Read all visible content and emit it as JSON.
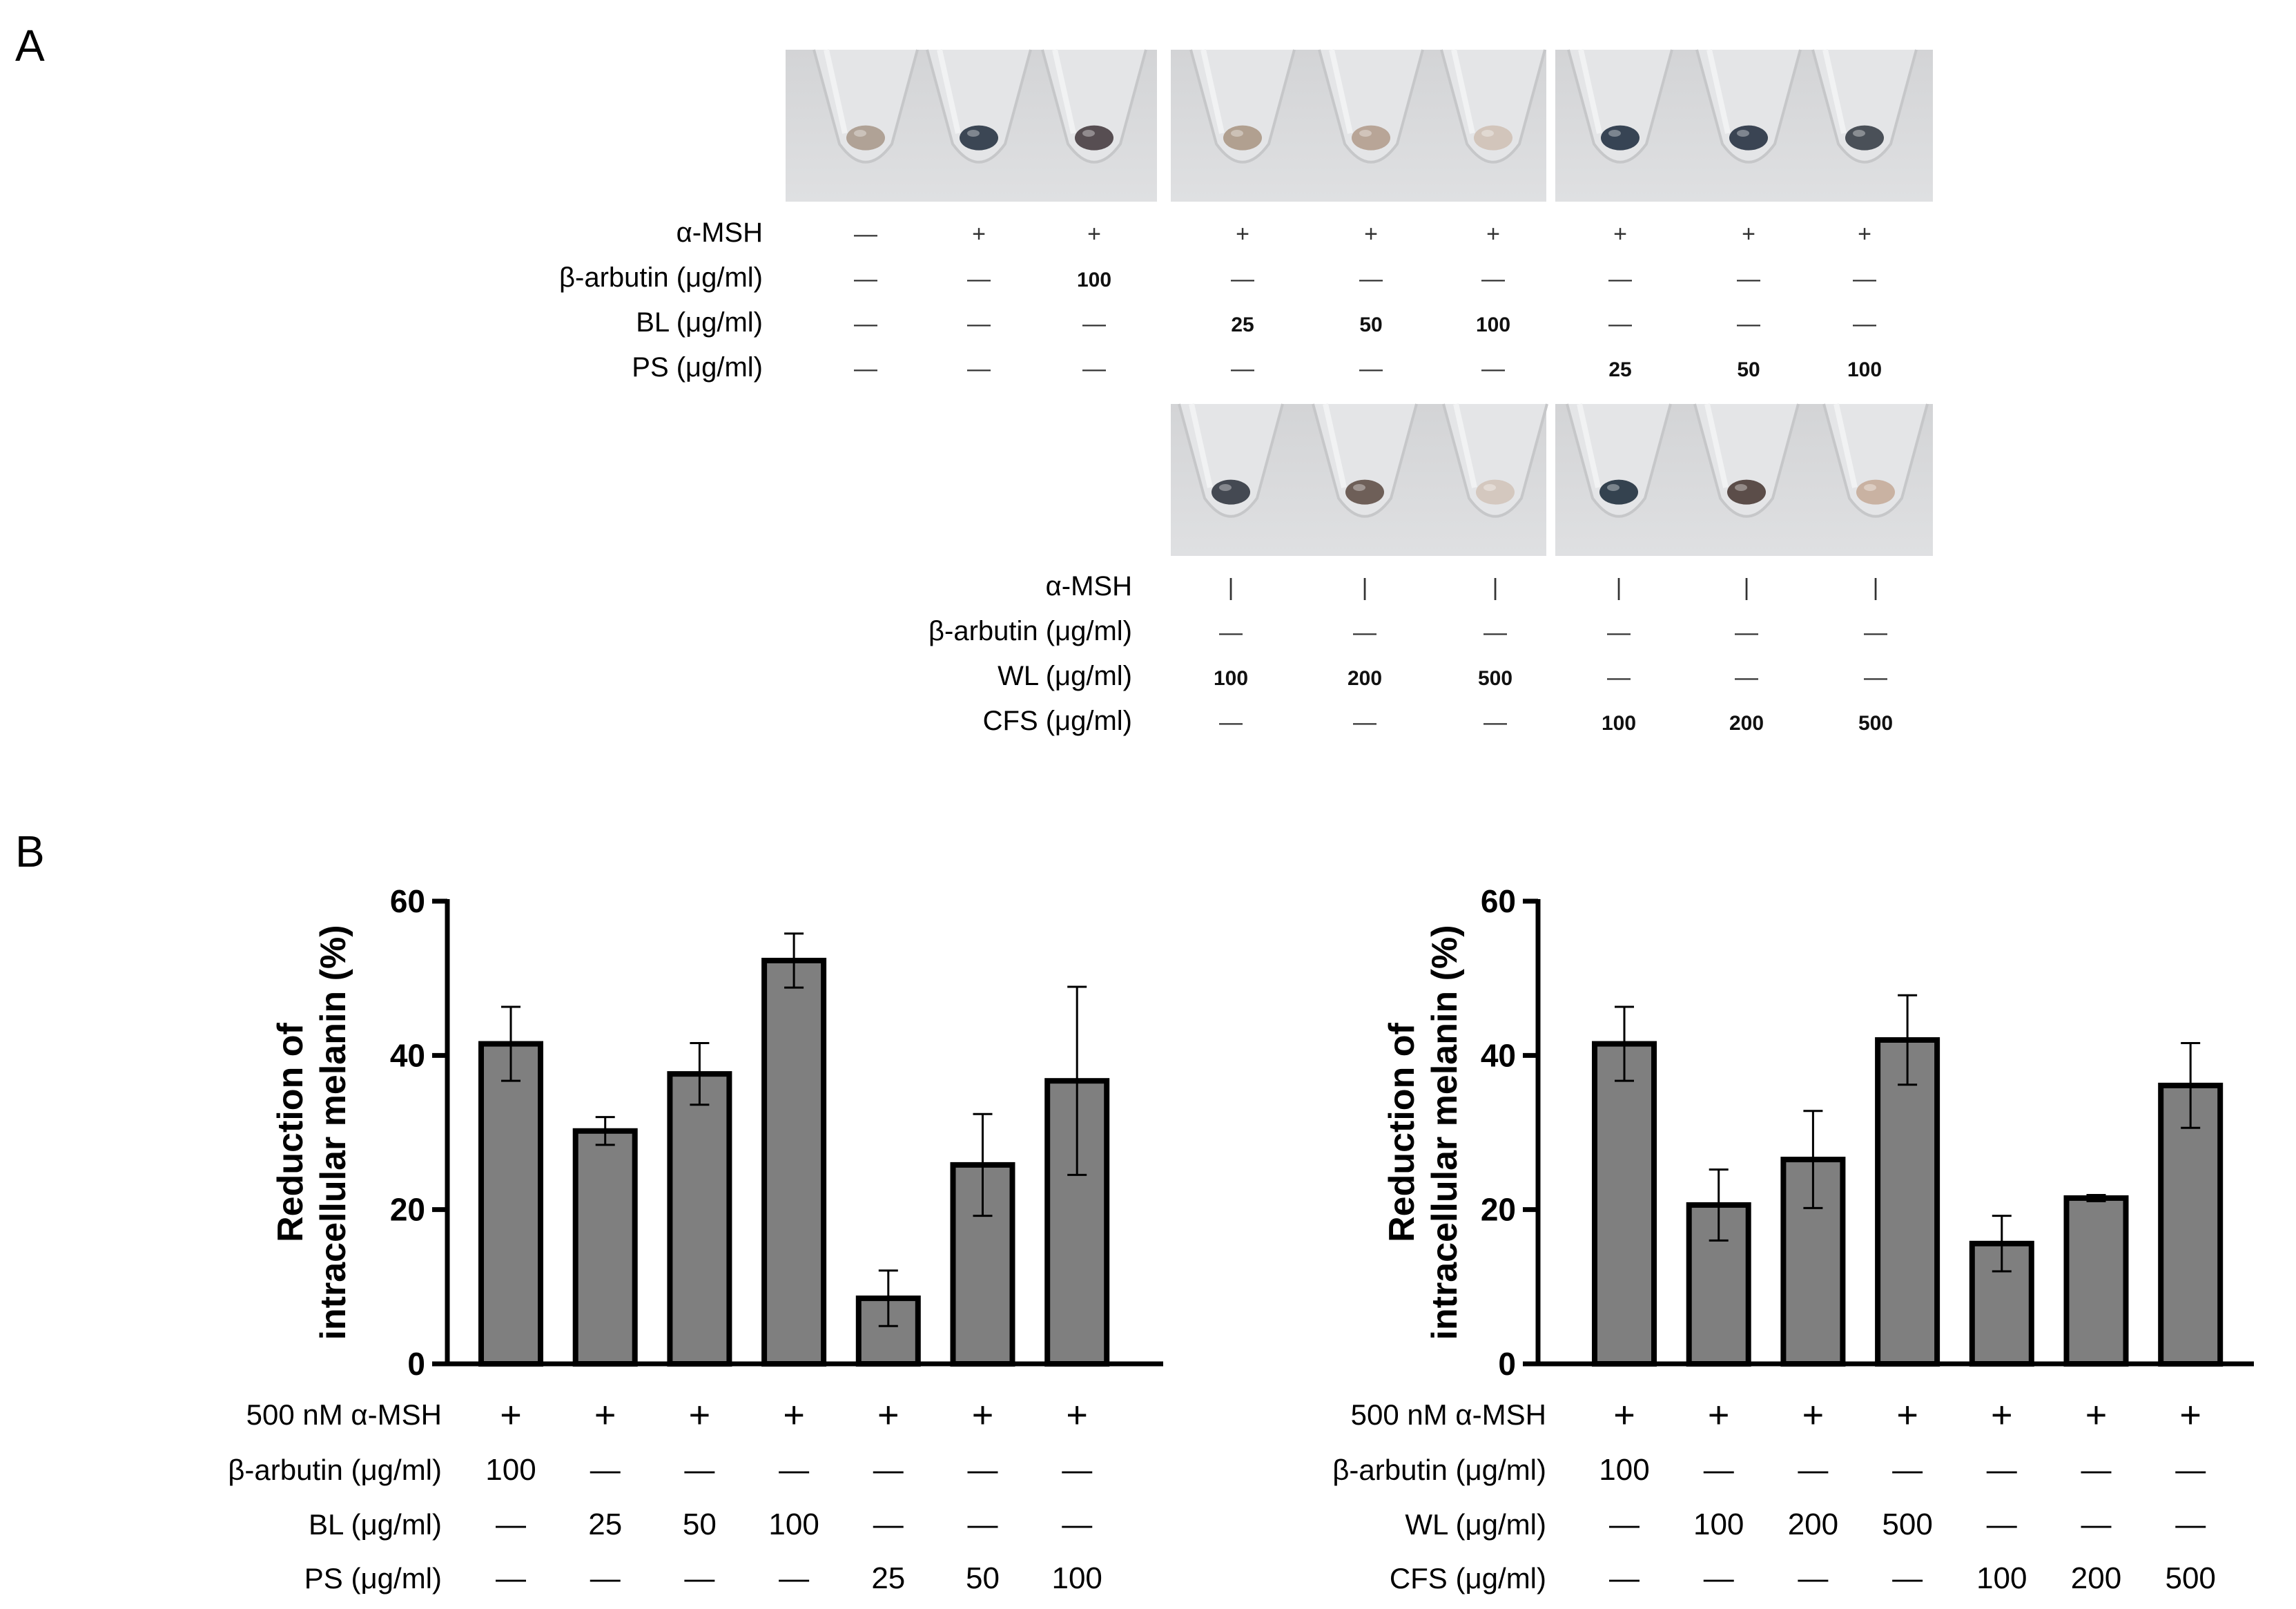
{
  "panel_a": {
    "letter": "A",
    "top": {
      "row_labels": [
        "α-MSH",
        "β-arbutin (μg/ml)",
        "BL  (μg/ml)",
        "PS  (μg/ml)"
      ],
      "columns": [
        {
          "tube": "#b0a296",
          "cells": [
            "—",
            "—",
            "—",
            "—"
          ]
        },
        {
          "tube": "#3b4654",
          "cells": [
            "+",
            "—",
            "—",
            "—"
          ]
        },
        {
          "tube": "#574e52",
          "cells": [
            "+",
            "100",
            "—",
            "—"
          ]
        },
        {
          "tube": "#b1a090",
          "cells": [
            "+",
            "—",
            "25",
            "—"
          ]
        },
        {
          "tube": "#b8a597",
          "cells": [
            "+",
            "—",
            "50",
            "—"
          ]
        },
        {
          "tube": "#d2c5bb",
          "cells": [
            "+",
            "—",
            "100",
            "—"
          ]
        },
        {
          "tube": "#374454",
          "cells": [
            "+",
            "—",
            "—",
            "25"
          ]
        },
        {
          "tube": "#3a4453",
          "cells": [
            "+",
            "—",
            "—",
            "50"
          ]
        },
        {
          "tube": "#4a5058",
          "cells": [
            "+",
            "—",
            "—",
            "100"
          ]
        }
      ]
    },
    "bottom": {
      "row_labels": [
        "α-MSH",
        "β-arbutin (μg/ml)",
        "WL  (μg/ml)",
        "CFS  (μg/ml)"
      ],
      "columns": [
        {
          "tube": "#444952",
          "cells": [
            "|",
            "—",
            "100",
            "—"
          ]
        },
        {
          "tube": "#6e5f58",
          "cells": [
            "|",
            "—",
            "200",
            "—"
          ]
        },
        {
          "tube": "#d4c8bf",
          "cells": [
            "|",
            "—",
            "500",
            "—"
          ]
        },
        {
          "tube": "#34424f",
          "cells": [
            "|",
            "—",
            "—",
            "100"
          ]
        },
        {
          "tube": "#5b4d49",
          "cells": [
            "|",
            "—",
            "—",
            "200"
          ]
        },
        {
          "tube": "#c9b2a2",
          "cells": [
            "|",
            "—",
            "—",
            "500"
          ]
        }
      ]
    }
  },
  "panel_b": {
    "letter": "B"
  },
  "chart_data": [
    {
      "type": "bar",
      "ylabel": "Reduction of intracellular melanin  (%)",
      "ylabel_lines": [
        "Reduction of",
        "intracellular melanin  (%)"
      ],
      "ylim": [
        0,
        60
      ],
      "yticks": [
        "0",
        "20",
        "40",
        "60"
      ],
      "values": [
        41.5,
        30.2,
        37.6,
        52.3,
        8.5,
        25.8,
        36.7
      ],
      "errors": [
        4.8,
        1.8,
        4.0,
        3.5,
        3.6,
        6.6,
        12.2
      ],
      "bar_color": "#7f7f7f",
      "treatment_rows": [
        {
          "label": "500 nM α-MSH",
          "cells": [
            "+",
            "+",
            "+",
            "+",
            "+",
            "+",
            "+"
          ]
        },
        {
          "label": "β-arbutin (μg/ml)",
          "cells": [
            "100",
            "—",
            "—",
            "—",
            "—",
            "—",
            "—"
          ]
        },
        {
          "label": "BL (μg/ml)",
          "cells": [
            "—",
            "25",
            "50",
            "100",
            "—",
            "—",
            "—"
          ]
        },
        {
          "label": "PS (μg/ml)",
          "cells": [
            "—",
            "—",
            "—",
            "—",
            "25",
            "50",
            "100"
          ]
        }
      ]
    },
    {
      "type": "bar",
      "ylabel": "Reduction of intracellular melanin  (%)",
      "ylabel_lines": [
        "Reduction of",
        "intracellular melanin  (%)"
      ],
      "ylim": [
        0,
        60
      ],
      "yticks": [
        "0",
        "20",
        "40",
        "60"
      ],
      "values": [
        41.5,
        20.6,
        26.5,
        42.0,
        15.6,
        21.5,
        36.1
      ],
      "errors": [
        4.8,
        4.6,
        6.3,
        5.8,
        3.6,
        0.4,
        5.5
      ],
      "bar_color": "#7f7f7f",
      "treatment_rows": [
        {
          "label": "500 nM α-MSH",
          "cells": [
            "+",
            "+",
            "+",
            "+",
            "+",
            "+",
            "+"
          ]
        },
        {
          "label": "β-arbutin (μg/ml)",
          "cells": [
            "100",
            "—",
            "—",
            "—",
            "—",
            "—",
            "—"
          ]
        },
        {
          "label": "WL (μg/ml)",
          "cells": [
            "—",
            "100",
            "200",
            "500",
            "—",
            "—",
            "—"
          ]
        },
        {
          "label": "CFS (μg/ml)",
          "cells": [
            "—",
            "—",
            "—",
            "—",
            "100",
            "200",
            "500"
          ]
        }
      ]
    }
  ]
}
